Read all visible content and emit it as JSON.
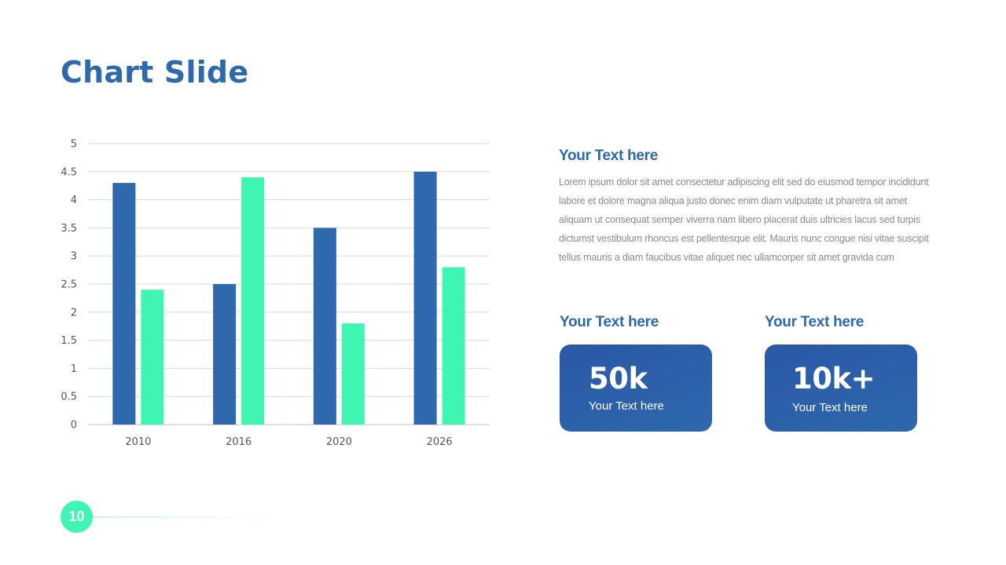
{
  "slide": {
    "title": "Chart Slide",
    "page_number": "10"
  },
  "colors": {
    "primary": "#2e68ad",
    "accent": "#3ff5b2",
    "grid": "#d9d9d9"
  },
  "chart_data": {
    "type": "bar",
    "categories": [
      "2010",
      "2016",
      "2020",
      "2026"
    ],
    "series": [
      {
        "values": [
          4.3,
          2.5,
          3.5,
          4.5
        ],
        "color": "#2e68ad"
      },
      {
        "values": [
          2.4,
          4.4,
          1.8,
          2.8
        ],
        "color": "#3ff5b2"
      }
    ],
    "ylim": [
      0,
      5
    ],
    "yticks": [
      "0",
      "0.5",
      "1",
      "1.5",
      "2",
      "2.5",
      "3",
      "3.5",
      "4",
      "4.5",
      "5"
    ],
    "grid": true,
    "legend": "none"
  },
  "text_block": {
    "heading": "Your Text here",
    "body": "Lorem ipsum dolor sit amet consectetur adipiscing elit sed do eiusmod tempor incididunt labore et dolore magna aliqua justo donec enim diam vulputate ut pharetra sit amet aliquam ut consequat semper viverra nam libero placerat duis ultricies lacus sed turpis dictumst vestibulum rhoncus est pellentesque elit. Mauris nunc congue nisi vitae suscipit tellus mauris a diam faucibus vitae aliquet nec ullamcorper sit amet gravida cum"
  },
  "stats": [
    {
      "heading": "Your Text here",
      "value": "50k",
      "label": "Your Text here"
    },
    {
      "heading": "Your Text here",
      "value": "10k+",
      "label": "Your Text here"
    }
  ]
}
